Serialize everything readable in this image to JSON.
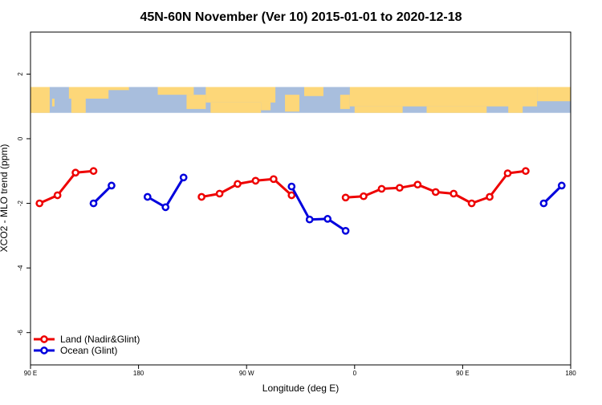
{
  "chart_data": {
    "type": "line",
    "title": "45N-60N November (Ver 10)   2015-01-01 to 2020-12-18",
    "xlabel": "Longitude (deg E)",
    "ylabel": "XCO2 - MLO trend (ppm)",
    "xlim": [
      90,
      540
    ],
    "ylim": [
      -7,
      3.3
    ],
    "x_ticks": [
      {
        "value": 90,
        "label": "90 E"
      },
      {
        "value": 180,
        "label": "180"
      },
      {
        "value": 270,
        "label": "90 W"
      },
      {
        "value": 360,
        "label": "0"
      },
      {
        "value": 450,
        "label": "90 E"
      },
      {
        "value": 540,
        "label": "180"
      }
    ],
    "y_ticks": [
      {
        "value": 2,
        "label": "2"
      },
      {
        "value": 0,
        "label": "0"
      },
      {
        "value": -2,
        "label": "-2"
      },
      {
        "value": -4,
        "label": "-4"
      },
      {
        "value": -6,
        "label": "-6"
      }
    ],
    "map_band": {
      "ymin": 0.8,
      "ymax": 1.6,
      "ocean_color": "#a8bedd",
      "land_color": "#fdd779"
    },
    "legend_position": "bottom-left",
    "series": [
      {
        "name": "Land (Nadir&Glint)",
        "color": "#ee0000",
        "segments": [
          [
            [
              97.5,
              -2.0
            ],
            [
              112.5,
              -1.75
            ],
            [
              127.5,
              -1.05
            ],
            [
              142.5,
              -1.0
            ]
          ],
          [
            [
              232.5,
              -1.8
            ],
            [
              247.5,
              -1.7
            ],
            [
              262.5,
              -1.4
            ],
            [
              277.5,
              -1.3
            ],
            [
              292.5,
              -1.25
            ],
            [
              307.5,
              -1.75
            ]
          ],
          [
            [
              352.5,
              -1.82
            ],
            [
              367.5,
              -1.78
            ],
            [
              382.5,
              -1.55
            ],
            [
              397.5,
              -1.52
            ],
            [
              412.5,
              -1.42
            ],
            [
              427.5,
              -1.65
            ],
            [
              442.5,
              -1.7
            ],
            [
              457.5,
              -2.0
            ],
            [
              472.5,
              -1.8
            ],
            [
              487.5,
              -1.07
            ],
            [
              502.5,
              -1.0
            ]
          ]
        ]
      },
      {
        "name": "Ocean (Glint)",
        "color": "#0000dd",
        "segments": [
          [
            [
              142.5,
              -2.0
            ],
            [
              157.5,
              -1.45
            ]
          ],
          [
            [
              187.5,
              -1.8
            ],
            [
              202.5,
              -2.12
            ],
            [
              217.5,
              -1.2
            ]
          ],
          [
            [
              307.5,
              -1.48
            ],
            [
              322.5,
              -2.5
            ],
            [
              337.5,
              -2.48
            ],
            [
              352.5,
              -2.85
            ]
          ],
          [
            [
              517.5,
              -2.0
            ],
            [
              532.5,
              -1.45
            ]
          ]
        ]
      }
    ]
  }
}
